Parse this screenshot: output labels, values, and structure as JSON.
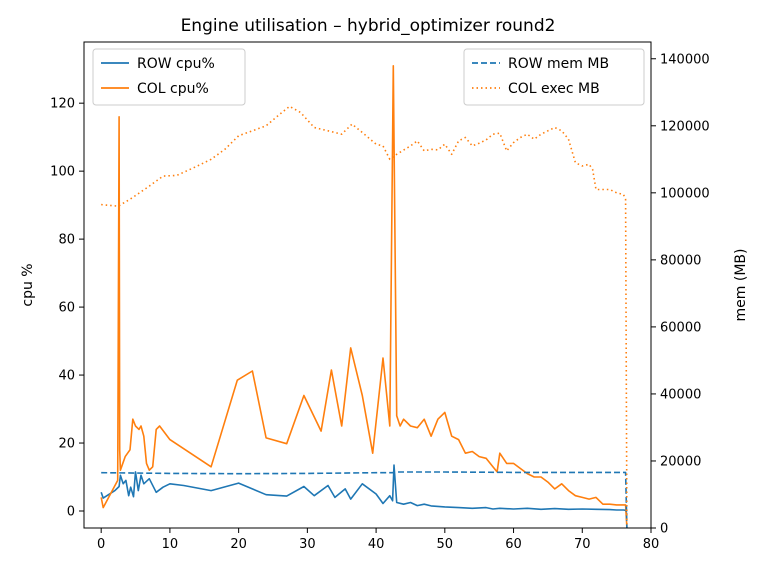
{
  "chart_data": {
    "type": "line",
    "title": "Engine utilisation – hybrid_optimizer round2",
    "xlabel": "",
    "ylabel": "cpu %",
    "y2label": "mem (MB)",
    "xlim": [
      -2.5,
      80
    ],
    "ylim": [
      -5,
      138
    ],
    "y2lim": [
      0,
      145000
    ],
    "xticks": [
      0,
      10,
      20,
      30,
      40,
      50,
      60,
      70,
      80
    ],
    "yticks": [
      0,
      20,
      40,
      60,
      80,
      100,
      120
    ],
    "y2ticks": [
      0,
      20000,
      40000,
      60000,
      80000,
      100000,
      120000,
      140000
    ],
    "legend_left_placement": "upper-left",
    "legend_right_placement": "upper-right",
    "grid": false,
    "series": [
      {
        "name": "ROW cpu%",
        "axis": "left",
        "color": "#1f77b4",
        "style": "solid",
        "x": [
          0,
          0.3,
          2,
          2.6,
          2.8,
          3.2,
          3.6,
          4,
          4.3,
          4.7,
          5,
          5.4,
          5.8,
          6.2,
          7,
          8,
          9,
          10,
          12,
          16,
          20,
          24,
          27,
          29.5,
          31,
          33,
          34,
          35.5,
          36.3,
          38,
          40,
          41,
          42,
          42.4,
          42.6,
          43,
          44,
          45,
          46,
          47,
          48,
          50,
          52,
          54,
          56,
          57,
          58,
          60,
          62,
          64,
          66,
          68,
          70,
          72,
          74,
          75,
          76,
          76.3,
          76.5
        ],
        "y": [
          5.5,
          3.8,
          6,
          7.2,
          10.5,
          8,
          9,
          4.5,
          7,
          4.2,
          11.5,
          6,
          10.5,
          8,
          9.5,
          5.5,
          7,
          8,
          7.5,
          6,
          8.2,
          4.8,
          4.4,
          7.2,
          4.5,
          7.5,
          4,
          6.5,
          3.5,
          8,
          5,
          2.2,
          4.5,
          3,
          13.5,
          2.5,
          2,
          2.5,
          1.6,
          2,
          1.5,
          1.2,
          1,
          0.8,
          1,
          0.6,
          0.8,
          0.6,
          0.8,
          0.5,
          0.7,
          0.5,
          0.6,
          0.5,
          0.4,
          0.3,
          0.3,
          0.2,
          -1
        ]
      },
      {
        "name": "COL cpu%",
        "axis": "left",
        "color": "#ff7f0e",
        "style": "solid",
        "x": [
          0,
          0.3,
          2.4,
          2.6,
          2.7,
          2.8,
          3.5,
          4.2,
          4.6,
          5,
          5.5,
          5.8,
          6.2,
          6.6,
          7,
          7.5,
          8,
          8.5,
          10,
          16,
          19.8,
          22,
          24,
          27,
          29.5,
          32,
          33.5,
          35,
          36.3,
          38,
          39.5,
          41,
          42,
          42.5,
          43,
          43.5,
          44,
          45,
          46,
          47,
          48,
          49,
          50,
          51,
          52,
          53,
          54,
          55,
          56,
          57,
          57.6,
          58,
          59,
          60,
          61,
          62,
          63,
          64,
          65,
          66,
          67,
          68,
          69,
          70,
          71,
          72,
          73,
          74,
          75,
          76,
          76.3,
          76.5
        ],
        "y": [
          4,
          1,
          9,
          116,
          18,
          12,
          16,
          18,
          27,
          25,
          24,
          25,
          22,
          14,
          12,
          13,
          24,
          25,
          21,
          13,
          38.5,
          41.2,
          21.5,
          19.8,
          34,
          23.5,
          41.5,
          25,
          48,
          34,
          17,
          45,
          25,
          131,
          28,
          25,
          27,
          25,
          24.5,
          27,
          22,
          27,
          29,
          22,
          21,
          17,
          17.5,
          16,
          15.5,
          13,
          11.5,
          17,
          14,
          14,
          12.5,
          11,
          10,
          10,
          8.5,
          6.5,
          8,
          6,
          4.5,
          4,
          3.5,
          4,
          2,
          2,
          1.8,
          1.8,
          1.8,
          -5
        ]
      },
      {
        "name": "ROW mem MB",
        "axis": "right",
        "color": "#1f77b4",
        "style": "dashed",
        "x": [
          0,
          10,
          20,
          30,
          40,
          42.4,
          42.6,
          50,
          60,
          70,
          76.3,
          76.5
        ],
        "y": [
          16500,
          16300,
          16200,
          16300,
          16500,
          16500,
          16700,
          16700,
          16600,
          16600,
          16600,
          0
        ]
      },
      {
        "name": "COL exec MB",
        "axis": "right",
        "color": "#ff7f0e",
        "style": "dotted",
        "x": [
          0,
          2.5,
          4.5,
          7,
          9,
          11,
          14,
          16,
          18,
          20,
          22,
          24,
          26,
          27.4,
          29,
          31,
          33,
          35,
          36.5,
          38,
          40,
          41,
          42,
          43,
          45,
          46,
          47,
          48,
          49,
          50,
          51,
          52,
          53,
          54,
          55,
          56,
          57,
          58,
          59,
          60,
          61,
          62,
          63,
          64,
          65,
          66,
          67,
          68,
          69,
          70,
          71,
          71.5,
          72,
          73,
          74,
          75,
          76,
          76.3,
          76.5
        ],
        "y": [
          96500,
          96000,
          98500,
          102000,
          105000,
          105200,
          108000,
          110000,
          113000,
          117000,
          118500,
          120000,
          123500,
          125800,
          124000,
          119500,
          118500,
          117500,
          120500,
          118000,
          114500,
          114000,
          110000,
          111500,
          114000,
          115500,
          112500,
          113000,
          112800,
          114500,
          111500,
          115500,
          116500,
          114000,
          114800,
          115800,
          117500,
          117800,
          112500,
          115000,
          116500,
          117500,
          116000,
          117500,
          118500,
          119500,
          118500,
          116000,
          109000,
          108000,
          108500,
          107000,
          101000,
          101000,
          101000,
          100000,
          99500,
          98000,
          0
        ]
      }
    ]
  }
}
